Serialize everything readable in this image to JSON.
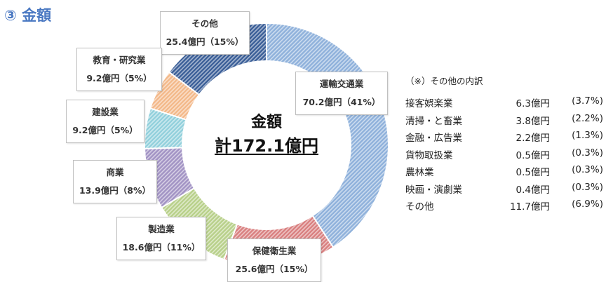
{
  "heading": "③ 金額",
  "center": {
    "title": "金額",
    "total": "計172.1億円"
  },
  "colors": {
    "heading": "#4a78c2",
    "運輸交通業": "#8fb1db",
    "保健衛生業": "#d98080",
    "製造業": "#b8d08a",
    "商業": "#a293c4",
    "建設業": "#92d0dc",
    "教育・研究業": "#f3b98a",
    "その他": "#3b5f98"
  },
  "chart_data": {
    "type": "pie",
    "variant": "donut",
    "unit": "億円",
    "series": [
      {
        "name": "運輸交通業",
        "value": 70.2,
        "percent": 41,
        "label": "70.2億円（41%）"
      },
      {
        "name": "保健衛生業",
        "value": 25.6,
        "percent": 15,
        "label": "25.6億円（15%）"
      },
      {
        "name": "製造業",
        "value": 18.6,
        "percent": 11,
        "label": "18.6億円（11%）"
      },
      {
        "name": "商業",
        "value": 13.9,
        "percent": 8,
        "label": "13.9億円（8%）"
      },
      {
        "name": "建設業",
        "value": 9.2,
        "percent": 5,
        "label": "9.2億円（5%）"
      },
      {
        "name": "教育・研究業",
        "value": 9.2,
        "percent": 5,
        "label": "9.2億円（5%）"
      },
      {
        "name": "その他",
        "value": 25.4,
        "percent": 15,
        "label": "25.4億円（15%）"
      }
    ]
  },
  "note": {
    "title": "（※）その他の内訳",
    "rows": [
      {
        "name": "接客娯楽業",
        "value": "6.3億円",
        "pct": "(3.7%)"
      },
      {
        "name": "清掃・と畜業",
        "value": "3.8億円",
        "pct": "(2.2%)"
      },
      {
        "name": "金融・広告業",
        "value": "2.2億円",
        "pct": "(1.3%)"
      },
      {
        "name": "貨物取扱業",
        "value": "0.5億円",
        "pct": "(0.3%)"
      },
      {
        "name": "農林業",
        "value": "0.5億円",
        "pct": "(0.3%)"
      },
      {
        "name": "映画・演劇業",
        "value": "0.4億円",
        "pct": "(0.3%)"
      },
      {
        "name": "その他",
        "value": "11.7億円",
        "pct": "(6.9%)"
      }
    ]
  }
}
